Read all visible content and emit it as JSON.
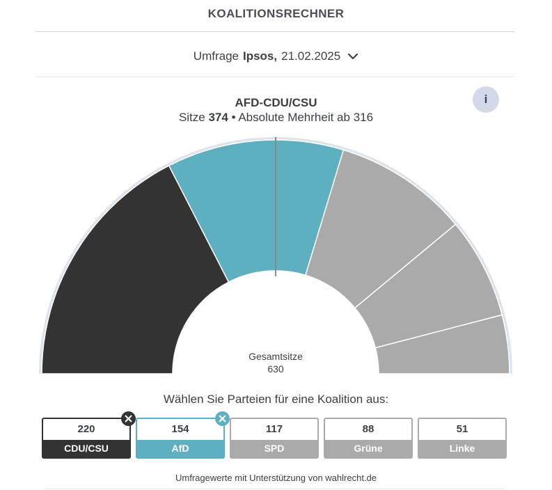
{
  "header": {
    "title": "KOALITIONSRECHNER"
  },
  "survey": {
    "prefix": "Umfrage",
    "institute": "Ipsos,",
    "date": "21.02.2025",
    "icon": "chevron-down-icon"
  },
  "coalition": {
    "name": "AFD-CDU/CSU",
    "seats_label": "Sitze",
    "seats": "374",
    "majority_text": "• Absolute Mehrheit ab 316",
    "info_label": "i"
  },
  "chart_center": {
    "label": "Gesamtsitze",
    "total": "630"
  },
  "prompt": "Wählen Sie Parteien für eine Koalition aus:",
  "footer": "Umfragewerte mit Unterstützung von wahlrecht.de",
  "colors": {
    "cdu": "#333333",
    "afd": "#5eb0c0",
    "other": "#aaaaaa",
    "majority_line": "#888888",
    "ring": "#dde4ec"
  },
  "chart_data": {
    "type": "pie",
    "total": 630,
    "majority": 316,
    "series": [
      {
        "name": "CDU/CSU",
        "value": 220,
        "selected": true,
        "color": "#333333"
      },
      {
        "name": "AfD",
        "value": 154,
        "selected": true,
        "color": "#5eb0c0"
      },
      {
        "name": "SPD",
        "value": 117,
        "selected": false,
        "color": "#aaaaaa"
      },
      {
        "name": "Grüne",
        "value": 88,
        "selected": false,
        "color": "#aaaaaa"
      },
      {
        "name": "Linke",
        "value": 51,
        "selected": false,
        "color": "#aaaaaa"
      }
    ]
  },
  "parties": [
    {
      "seats": "220",
      "name": "CDU/CSU",
      "selected": true,
      "color": "#333333",
      "remove_icon": "close-icon"
    },
    {
      "seats": "154",
      "name": "AfD",
      "selected": true,
      "color": "#5eb0c0",
      "remove_icon": "close-icon"
    },
    {
      "seats": "117",
      "name": "SPD",
      "selected": false,
      "color": "#aaaaaa"
    },
    {
      "seats": "88",
      "name": "Grüne",
      "selected": false,
      "color": "#aaaaaa"
    },
    {
      "seats": "51",
      "name": "Linke",
      "selected": false,
      "color": "#aaaaaa"
    }
  ]
}
